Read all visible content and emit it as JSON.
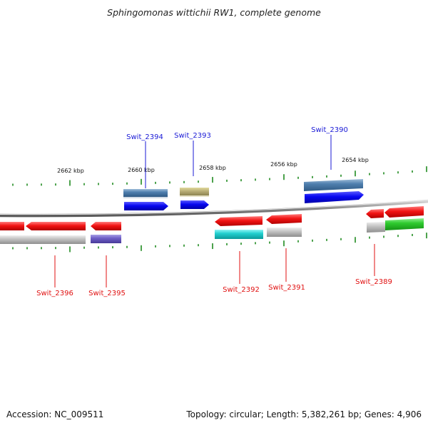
{
  "title": "Sphingomonas wittichii RW1, complete genome",
  "footer": {
    "accession": "Accession: NC_009511",
    "summary": "Topology: circular; Length: 5,382,261 bp; Genes: 4,906"
  },
  "colors": {
    "forward_label": "#1a1ad6",
    "reverse_label": "#e01010",
    "backbone": "#8a8a8a",
    "ticks": "#1f8a1f",
    "cds_forward": "#0a0af0",
    "cds_reverse": "#f01010"
  },
  "tick_labels": [
    {
      "text": "2662 kbp",
      "kbp": 2662
    },
    {
      "text": "2660 kbp",
      "kbp": 2660
    },
    {
      "text": "2658 kbp",
      "kbp": 2658
    },
    {
      "text": "2656 kbp",
      "kbp": 2656
    },
    {
      "text": "2654 kbp",
      "kbp": 2654
    }
  ],
  "genes": [
    {
      "id": "Swit_2396",
      "strand": "reverse"
    },
    {
      "id": "Swit_2395",
      "strand": "reverse"
    },
    {
      "id": "Swit_2394",
      "strand": "forward"
    },
    {
      "id": "Swit_2393",
      "strand": "forward"
    },
    {
      "id": "Swit_2392",
      "strand": "reverse"
    },
    {
      "id": "Swit_2391",
      "strand": "reverse"
    },
    {
      "id": "Swit_2390",
      "strand": "forward"
    },
    {
      "id": "Swit_2389",
      "strand": "reverse"
    }
  ]
}
